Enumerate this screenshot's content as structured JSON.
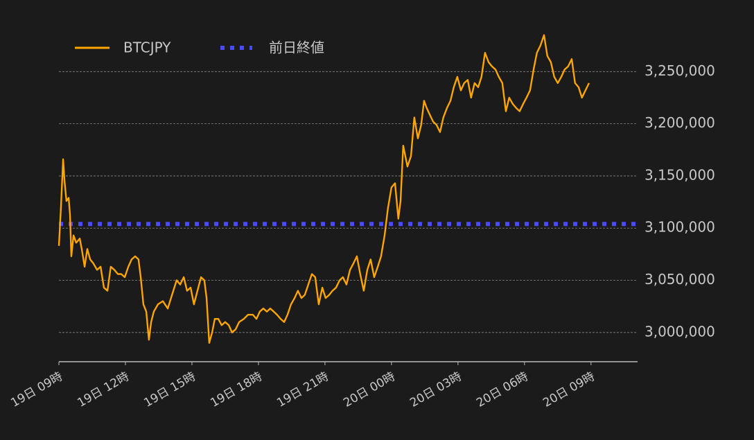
{
  "chart_data": {
    "type": "line",
    "x": [
      0,
      0.09,
      0.19,
      0.25,
      0.34,
      0.44,
      0.5,
      0.56,
      0.66,
      0.78,
      0.94,
      1.03,
      1.16,
      1.28,
      1.41,
      1.56,
      1.72,
      1.88,
      2.03,
      2.19,
      2.34,
      2.5,
      2.66,
      2.81,
      2.97,
      3.13,
      3.28,
      3.44,
      3.59,
      3.69,
      3.81,
      3.94,
      4.06,
      4.16,
      4.28,
      4.47,
      4.69,
      4.91,
      5.16,
      5.31,
      5.47,
      5.63,
      5.78,
      5.94,
      6.09,
      6.25,
      6.41,
      6.56,
      6.66,
      6.78,
      6.91,
      7.03,
      7.19,
      7.34,
      7.5,
      7.66,
      7.81,
      7.97,
      8.13,
      8.34,
      8.53,
      8.75,
      8.91,
      9.06,
      9.22,
      9.38,
      9.53,
      9.69,
      9.84,
      10,
      10.16,
      10.31,
      10.47,
      10.63,
      10.78,
      10.94,
      11.09,
      11.25,
      11.41,
      11.56,
      11.72,
      11.88,
      12.03,
      12.19,
      12.34,
      12.5,
      12.66,
      12.81,
      12.97,
      13.13,
      13.28,
      13.44,
      13.59,
      13.75,
      13.91,
      14.06,
      14.22,
      14.38,
      14.53,
      14.69,
      14.84,
      15,
      15.16,
      15.31,
      15.41,
      15.53,
      15.72,
      15.88,
      16.03,
      16.19,
      16.34,
      16.47,
      16.59,
      16.72,
      16.88,
      17.03,
      17.19,
      17.34,
      17.5,
      17.66,
      17.81,
      17.97,
      18.13,
      18.28,
      18.44,
      18.59,
      18.75,
      18.91,
      19.06,
      19.22,
      19.38,
      19.53,
      19.69,
      19.84,
      20,
      20.16,
      20.31,
      20.47,
      20.63,
      20.78,
      20.94,
      21.09,
      21.25,
      21.41,
      21.56,
      21.72,
      21.88,
      22.03,
      22.19,
      22.34,
      22.5,
      22.66,
      22.81,
      22.97,
      23.13,
      23.28,
      23.44,
      23.59,
      23.75,
      23.91
    ],
    "series": [
      {
        "name": "BTCJPY",
        "color": "#ffa500",
        "values": [
          3083000,
          3119000,
          3166000,
          3146000,
          3126000,
          3129000,
          3113000,
          3073000,
          3093000,
          3086000,
          3090000,
          3080000,
          3063000,
          3080000,
          3070000,
          3066000,
          3060000,
          3063000,
          3043000,
          3040000,
          3063000,
          3060000,
          3056000,
          3056000,
          3053000,
          3063000,
          3070000,
          3073000,
          3070000,
          3053000,
          3027000,
          3020000,
          2993000,
          3010000,
          3020000,
          3027000,
          3030000,
          3023000,
          3040000,
          3050000,
          3046000,
          3053000,
          3040000,
          3043000,
          3027000,
          3040000,
          3053000,
          3050000,
          3033000,
          2990000,
          3000000,
          3013000,
          3013000,
          3007000,
          3010000,
          3007000,
          3000000,
          3003000,
          3010000,
          3013000,
          3017000,
          3017000,
          3013000,
          3020000,
          3023000,
          3020000,
          3023000,
          3020000,
          3017000,
          3013000,
          3010000,
          3017000,
          3027000,
          3033000,
          3040000,
          3033000,
          3036000,
          3046000,
          3056000,
          3053000,
          3027000,
          3043000,
          3033000,
          3036000,
          3040000,
          3043000,
          3050000,
          3053000,
          3046000,
          3060000,
          3066000,
          3073000,
          3056000,
          3040000,
          3060000,
          3070000,
          3053000,
          3063000,
          3073000,
          3093000,
          3119000,
          3139000,
          3143000,
          3109000,
          3126000,
          3179000,
          3159000,
          3169000,
          3206000,
          3186000,
          3199000,
          3222000,
          3215000,
          3209000,
          3202000,
          3199000,
          3192000,
          3206000,
          3215000,
          3222000,
          3235000,
          3245000,
          3232000,
          3239000,
          3242000,
          3225000,
          3239000,
          3235000,
          3245000,
          3268000,
          3259000,
          3255000,
          3252000,
          3245000,
          3239000,
          3212000,
          3225000,
          3219000,
          3215000,
          3212000,
          3219000,
          3225000,
          3232000,
          3252000,
          3268000,
          3275000,
          3285000,
          3265000,
          3259000,
          3245000,
          3239000,
          3245000,
          3252000,
          3255000,
          3262000,
          3239000,
          3235000,
          3225000,
          3232000,
          3239000
        ]
      }
    ],
    "previous_close": {
      "name": "前日終値",
      "color": "#4a4aff",
      "value": 3104000
    },
    "xlim": [
      0,
      26.1
    ],
    "xticks": [
      {
        "value": 0,
        "label": "19日 09時"
      },
      {
        "value": 3,
        "label": "19日 12時"
      },
      {
        "value": 6,
        "label": "19日 15時"
      },
      {
        "value": 9,
        "label": "19日 18時"
      },
      {
        "value": 12,
        "label": "19日 21時"
      },
      {
        "value": 15,
        "label": "20日 00時"
      },
      {
        "value": 18,
        "label": "20日 03時"
      },
      {
        "value": 21,
        "label": "20日 06時"
      },
      {
        "value": 24,
        "label": "20日 09時"
      }
    ],
    "ylim": [
      2972000,
      3300000
    ],
    "yticks": [
      {
        "value": 3000000,
        "label": "3,000,000"
      },
      {
        "value": 3050000,
        "label": "3,050,000"
      },
      {
        "value": 3100000,
        "label": "3,100,000"
      },
      {
        "value": 3150000,
        "label": "3,150,000"
      },
      {
        "value": 3200000,
        "label": "3,200,000"
      },
      {
        "value": 3250000,
        "label": "3,250,000"
      }
    ],
    "grid": true
  }
}
